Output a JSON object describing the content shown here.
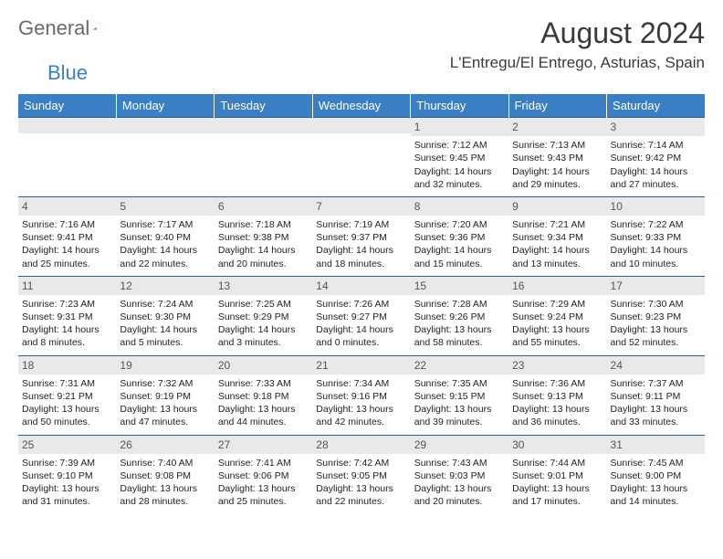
{
  "logo": {
    "text1": "General",
    "text2": "Blue"
  },
  "title": "August 2024",
  "location": "L'Entregu/El Entrego, Asturias, Spain",
  "colors": {
    "header_bg": "#3a7fc4",
    "header_text": "#ffffff",
    "daynum_bg": "#e9e9e9",
    "border": "#2c5f8f",
    "body_text": "#222222",
    "logo_gray": "#6a6a6a",
    "logo_blue": "#3a7fc4"
  },
  "weekdays": [
    "Sunday",
    "Monday",
    "Tuesday",
    "Wednesday",
    "Thursday",
    "Friday",
    "Saturday"
  ],
  "weeks": [
    [
      null,
      null,
      null,
      null,
      {
        "d": "1",
        "sr": "7:12 AM",
        "ss": "9:45 PM",
        "dl": "14 hours and 32 minutes."
      },
      {
        "d": "2",
        "sr": "7:13 AM",
        "ss": "9:43 PM",
        "dl": "14 hours and 29 minutes."
      },
      {
        "d": "3",
        "sr": "7:14 AM",
        "ss": "9:42 PM",
        "dl": "14 hours and 27 minutes."
      }
    ],
    [
      {
        "d": "4",
        "sr": "7:16 AM",
        "ss": "9:41 PM",
        "dl": "14 hours and 25 minutes."
      },
      {
        "d": "5",
        "sr": "7:17 AM",
        "ss": "9:40 PM",
        "dl": "14 hours and 22 minutes."
      },
      {
        "d": "6",
        "sr": "7:18 AM",
        "ss": "9:38 PM",
        "dl": "14 hours and 20 minutes."
      },
      {
        "d": "7",
        "sr": "7:19 AM",
        "ss": "9:37 PM",
        "dl": "14 hours and 18 minutes."
      },
      {
        "d": "8",
        "sr": "7:20 AM",
        "ss": "9:36 PM",
        "dl": "14 hours and 15 minutes."
      },
      {
        "d": "9",
        "sr": "7:21 AM",
        "ss": "9:34 PM",
        "dl": "14 hours and 13 minutes."
      },
      {
        "d": "10",
        "sr": "7:22 AM",
        "ss": "9:33 PM",
        "dl": "14 hours and 10 minutes."
      }
    ],
    [
      {
        "d": "11",
        "sr": "7:23 AM",
        "ss": "9:31 PM",
        "dl": "14 hours and 8 minutes."
      },
      {
        "d": "12",
        "sr": "7:24 AM",
        "ss": "9:30 PM",
        "dl": "14 hours and 5 minutes."
      },
      {
        "d": "13",
        "sr": "7:25 AM",
        "ss": "9:29 PM",
        "dl": "14 hours and 3 minutes."
      },
      {
        "d": "14",
        "sr": "7:26 AM",
        "ss": "9:27 PM",
        "dl": "14 hours and 0 minutes."
      },
      {
        "d": "15",
        "sr": "7:28 AM",
        "ss": "9:26 PM",
        "dl": "13 hours and 58 minutes."
      },
      {
        "d": "16",
        "sr": "7:29 AM",
        "ss": "9:24 PM",
        "dl": "13 hours and 55 minutes."
      },
      {
        "d": "17",
        "sr": "7:30 AM",
        "ss": "9:23 PM",
        "dl": "13 hours and 52 minutes."
      }
    ],
    [
      {
        "d": "18",
        "sr": "7:31 AM",
        "ss": "9:21 PM",
        "dl": "13 hours and 50 minutes."
      },
      {
        "d": "19",
        "sr": "7:32 AM",
        "ss": "9:19 PM",
        "dl": "13 hours and 47 minutes."
      },
      {
        "d": "20",
        "sr": "7:33 AM",
        "ss": "9:18 PM",
        "dl": "13 hours and 44 minutes."
      },
      {
        "d": "21",
        "sr": "7:34 AM",
        "ss": "9:16 PM",
        "dl": "13 hours and 42 minutes."
      },
      {
        "d": "22",
        "sr": "7:35 AM",
        "ss": "9:15 PM",
        "dl": "13 hours and 39 minutes."
      },
      {
        "d": "23",
        "sr": "7:36 AM",
        "ss": "9:13 PM",
        "dl": "13 hours and 36 minutes."
      },
      {
        "d": "24",
        "sr": "7:37 AM",
        "ss": "9:11 PM",
        "dl": "13 hours and 33 minutes."
      }
    ],
    [
      {
        "d": "25",
        "sr": "7:39 AM",
        "ss": "9:10 PM",
        "dl": "13 hours and 31 minutes."
      },
      {
        "d": "26",
        "sr": "7:40 AM",
        "ss": "9:08 PM",
        "dl": "13 hours and 28 minutes."
      },
      {
        "d": "27",
        "sr": "7:41 AM",
        "ss": "9:06 PM",
        "dl": "13 hours and 25 minutes."
      },
      {
        "d": "28",
        "sr": "7:42 AM",
        "ss": "9:05 PM",
        "dl": "13 hours and 22 minutes."
      },
      {
        "d": "29",
        "sr": "7:43 AM",
        "ss": "9:03 PM",
        "dl": "13 hours and 20 minutes."
      },
      {
        "d": "30",
        "sr": "7:44 AM",
        "ss": "9:01 PM",
        "dl": "13 hours and 17 minutes."
      },
      {
        "d": "31",
        "sr": "7:45 AM",
        "ss": "9:00 PM",
        "dl": "13 hours and 14 minutes."
      }
    ]
  ],
  "labels": {
    "sunrise": "Sunrise: ",
    "sunset": "Sunset: ",
    "daylight": "Daylight: "
  }
}
